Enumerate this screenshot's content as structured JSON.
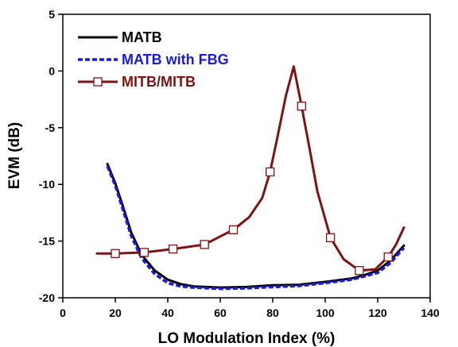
{
  "chart_data": {
    "type": "line",
    "title": "",
    "xlabel": "LO Modulation Index (%)",
    "ylabel": "EVM (dB)",
    "xlim": [
      0,
      140
    ],
    "ylim": [
      -20,
      5
    ],
    "xticks": [
      0,
      20,
      40,
      60,
      80,
      100,
      120,
      140
    ],
    "yticks": [
      -20,
      -15,
      -10,
      -5,
      0,
      5
    ],
    "grid": false,
    "legend_position": "top-left",
    "series": [
      {
        "name": "MATB",
        "color": "#000000",
        "style": "solid",
        "marker": "none",
        "x": [
          17,
          20,
          23,
          26,
          30,
          35,
          40,
          45,
          50,
          60,
          70,
          80,
          90,
          100,
          110,
          115,
          120,
          125,
          128,
          130
        ],
        "y": [
          -8.2,
          -9.9,
          -12.0,
          -14.2,
          -16.2,
          -17.6,
          -18.4,
          -18.8,
          -19.0,
          -19.1,
          -19.05,
          -18.9,
          -18.85,
          -18.6,
          -18.3,
          -18.0,
          -17.6,
          -16.7,
          -15.9,
          -15.4
        ]
      },
      {
        "name": "MATB with FBG",
        "color": "#1a1adc",
        "style": "dashed",
        "marker": "none",
        "x": [
          17,
          20,
          23,
          26,
          30,
          35,
          40,
          45,
          50,
          60,
          70,
          80,
          90,
          100,
          110,
          115,
          120,
          125,
          128,
          130
        ],
        "y": [
          -8.4,
          -10.1,
          -12.3,
          -14.5,
          -16.5,
          -17.9,
          -18.7,
          -19.0,
          -19.1,
          -19.2,
          -19.15,
          -19.05,
          -18.95,
          -18.7,
          -18.4,
          -18.1,
          -17.8,
          -16.9,
          -16.1,
          -15.6
        ]
      },
      {
        "name": "MITB/MITB",
        "color": "#7f1212",
        "style": "solid",
        "marker": "square",
        "x": [
          13,
          20,
          31,
          42,
          54,
          65,
          71,
          76,
          79,
          82,
          85,
          88,
          91,
          94,
          97,
          102,
          107,
          113,
          119,
          124,
          127,
          130
        ],
        "y": [
          -16.1,
          -16.1,
          -16.0,
          -15.7,
          -15.3,
          -14.0,
          -12.9,
          -11.2,
          -8.9,
          -5.6,
          -2.2,
          0.4,
          -3.1,
          -6.8,
          -10.6,
          -14.7,
          -16.6,
          -17.6,
          -17.5,
          -16.4,
          -15.3,
          -13.8
        ],
        "marker_x": [
          20,
          31,
          42,
          54,
          65,
          79,
          91,
          102,
          113,
          124
        ],
        "marker_y": [
          -16.1,
          -16.0,
          -15.7,
          -15.3,
          -14.0,
          -8.9,
          -3.1,
          -14.7,
          -17.6,
          -16.4
        ]
      }
    ]
  }
}
